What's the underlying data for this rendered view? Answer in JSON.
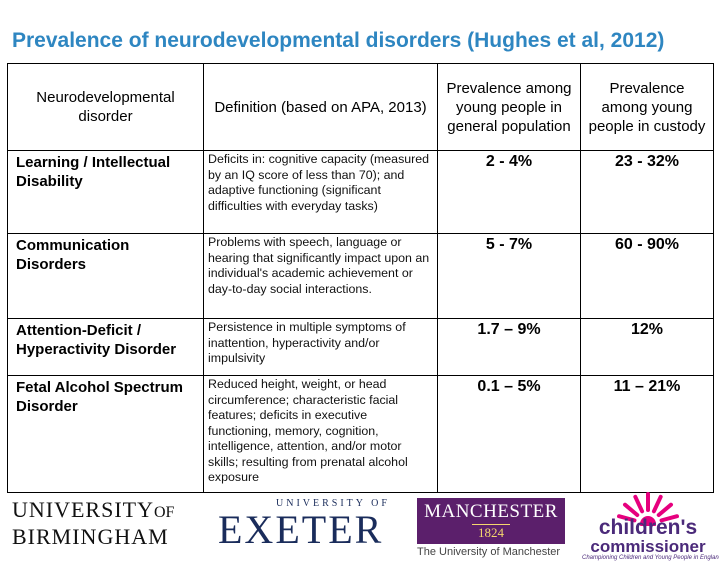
{
  "title": "Prevalence of neurodevelopmental disorders  (Hughes et al, 2012)",
  "table": {
    "headers": [
      "Neurodevelopmental disorder",
      "Definition (based on APA, 2013)",
      "Prevalence among young people in general population",
      "Prevalence among young people in custody"
    ],
    "rows": [
      {
        "disorder": "Learning / Intellectual Disability",
        "definition": "Deficits in: cognitive capacity (measured by an IQ score of less than 70); and adaptive functioning (significant difficulties with everyday tasks)",
        "general": "2 - 4%",
        "custody": "23 - 32%"
      },
      {
        "disorder": "Communication Disorders",
        "definition": "Problems with speech, language or hearing that significantly impact upon an individual's academic achievement or day-to-day social interactions.",
        "general": "5 - 7%",
        "custody": "60 - 90%"
      },
      {
        "disorder": "Attention-Deficit / Hyperactivity Disorder",
        "definition": "Persistence in multiple symptoms of inattention, hyperactivity and/or impulsivity",
        "general": "1.7 – 9%",
        "custody": "12%"
      },
      {
        "disorder": "Fetal Alcohol Spectrum Disorder",
        "definition": "Reduced height, weight, or head circumference; characteristic facial features; deficits in executive functioning, memory, cognition, intelligence, attention, and/or motor skills; resulting from prenatal alcohol exposure",
        "general": "0.1 – 5%",
        "custody": "11 – 21%"
      }
    ]
  },
  "logos": {
    "birmingham": {
      "line1": "UNIVERSITY",
      "of": "OF",
      "line2": "BIRMINGHAM"
    },
    "exeter": {
      "small": "UNIVERSITY OF",
      "big": "EXETER"
    },
    "manchester": {
      "name": "MANCHESTER",
      "year": "1824",
      "sub": "The University of Manchester",
      "color": "#5b1f6b"
    },
    "commissioner": {
      "line1": "children's",
      "line2": "commissioner",
      "tagline": "Championing Children and Young People in England"
    }
  },
  "colors": {
    "title": "#2e86c1"
  }
}
